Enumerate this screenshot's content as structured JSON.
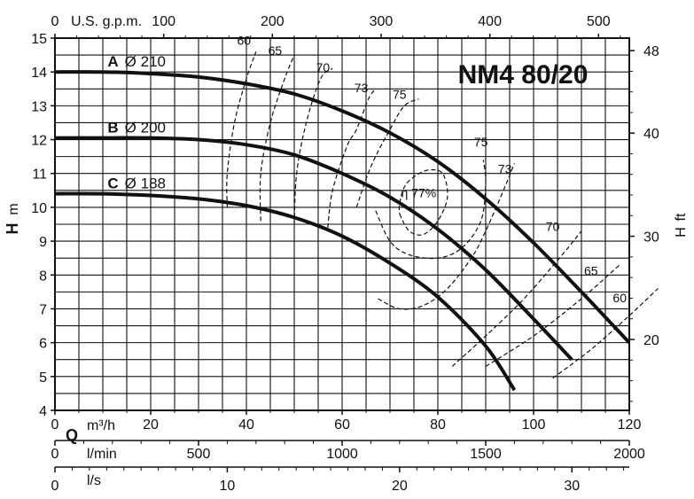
{
  "chart_data": {
    "type": "line",
    "title": "NM4 80/20",
    "ylabel": "H",
    "ylabel_unit": "m",
    "ylabel_right": "H",
    "ylabel_right_unit": "ft",
    "ylim": [
      4,
      15
    ],
    "yticks": [
      4,
      5,
      6,
      7,
      8,
      9,
      10,
      11,
      12,
      13,
      14,
      15
    ],
    "ylim_ft": [
      13.12,
      49.21
    ],
    "yticks_ft": [
      20,
      30,
      40,
      48
    ],
    "grid": true,
    "x_axes": [
      {
        "label": "Q",
        "unit": "m³/h",
        "range": [
          0,
          120
        ],
        "ticks": [
          0,
          20,
          40,
          60,
          80,
          100,
          120
        ]
      },
      {
        "unit": "l/min",
        "range": [
          0,
          2000
        ],
        "ticks": [
          0,
          500,
          1000,
          1500,
          2000
        ]
      },
      {
        "unit": "l/s",
        "range": [
          0,
          33.33
        ],
        "ticks": [
          0,
          10,
          20,
          30
        ]
      },
      {
        "unit": "U.S. g.p.m.",
        "range": [
          0,
          528.3
        ],
        "ticks": [
          0,
          100,
          200,
          300,
          400,
          500
        ]
      }
    ],
    "series": [
      {
        "name": "A",
        "diameter_label": "Ø 210",
        "x": [
          0,
          10,
          20,
          30,
          40,
          50,
          60,
          70,
          80,
          90,
          100,
          110,
          120
        ],
        "y": [
          14.0,
          14.0,
          13.95,
          13.85,
          13.65,
          13.35,
          12.85,
          12.2,
          11.35,
          10.25,
          8.95,
          7.5,
          6.0
        ]
      },
      {
        "name": "B",
        "diameter_label": "Ø 200",
        "x": [
          0,
          10,
          20,
          30,
          40,
          50,
          60,
          70,
          80,
          90,
          100,
          108
        ],
        "y": [
          12.05,
          12.05,
          12.05,
          12.0,
          11.85,
          11.55,
          11.0,
          10.3,
          9.35,
          8.15,
          6.7,
          5.5
        ]
      },
      {
        "name": "C",
        "diameter_label": "Ø 188",
        "x": [
          0,
          10,
          20,
          30,
          40,
          50,
          60,
          70,
          80,
          90,
          96
        ],
        "y": [
          10.4,
          10.4,
          10.35,
          10.25,
          10.05,
          9.7,
          9.15,
          8.35,
          7.35,
          5.9,
          4.6
        ]
      }
    ],
    "efficiency_contours": [
      {
        "label": "60",
        "unit": "",
        "points": [
          [
            36,
            10
          ],
          [
            36,
            11
          ],
          [
            37.5,
            12.5
          ],
          [
            40,
            13.8
          ],
          [
            42,
            14.6
          ]
        ],
        "label_at": [
          39.5,
          14.8
        ],
        "points2": [
          [
            104,
            4.95
          ],
          [
            112,
            5.8
          ],
          [
            120,
            6.8
          ],
          [
            126,
            7.6
          ]
        ],
        "label2_at": [
          118,
          7.2
        ]
      },
      {
        "label": "65",
        "unit": "",
        "points": [
          [
            43,
            9.6
          ],
          [
            43,
            11
          ],
          [
            45,
            12.5
          ],
          [
            48,
            13.8
          ],
          [
            50,
            14.5
          ]
        ],
        "label_at": [
          46,
          14.5
        ],
        "points2": [
          [
            90,
            5.3
          ],
          [
            100,
            6.2
          ],
          [
            110,
            7.3
          ],
          [
            118,
            8.3
          ]
        ],
        "label2_at": [
          112,
          8.0
        ]
      },
      {
        "label": "70",
        "unit": "",
        "points": [
          [
            50,
            9.5
          ],
          [
            50.5,
            11
          ],
          [
            52.5,
            12.5
          ],
          [
            55.5,
            13.8
          ],
          [
            58,
            14.1
          ]
        ],
        "label_at": [
          56,
          14.0
        ],
        "points2": [
          [
            83,
            5.3
          ],
          [
            90,
            6.2
          ],
          [
            98,
            7.3
          ],
          [
            106,
            8.6
          ],
          [
            110,
            9.3
          ]
        ],
        "label2_at": [
          104,
          9.3
        ]
      },
      {
        "label": "73",
        "unit": "",
        "points": [
          [
            57,
            9.4
          ],
          [
            58,
            10.5
          ],
          [
            61,
            11.8
          ],
          [
            63,
            12.3
          ],
          [
            65.5,
            13.2
          ],
          [
            67,
            13.5
          ]
        ],
        "label_at": [
          64,
          13.4
        ],
        "points2": [
          [
            67.5,
            7.3
          ],
          [
            72,
            7.0
          ],
          [
            77,
            7.1
          ],
          [
            82,
            7.6
          ],
          [
            87,
            8.5
          ],
          [
            90,
            9.3
          ],
          [
            94,
            10.6
          ],
          [
            96,
            11.3
          ]
        ],
        "label2_at": [
          94,
          11.0
        ]
      },
      {
        "label": "75",
        "unit": "",
        "points": [
          [
            63,
            10.0
          ],
          [
            66,
            11.2
          ],
          [
            70,
            12.3
          ],
          [
            73,
            13.0
          ],
          [
            76,
            13.2
          ]
        ],
        "label_at": [
          72,
          13.2
        ],
        "points2": [
          [
            67,
            9.9
          ],
          [
            70,
            9.0
          ],
          [
            74,
            8.6
          ],
          [
            80,
            8.5
          ],
          [
            85,
            8.8
          ],
          [
            89,
            9.6
          ],
          [
            90,
            10.7
          ],
          [
            89.5,
            11.4
          ]
        ],
        "label2_at": [
          89,
          11.8
        ]
      },
      {
        "label": "η 77%",
        "unit": "",
        "points": [
          [
            72,
            9.8
          ],
          [
            74,
            9.3
          ],
          [
            77,
            9.2
          ],
          [
            80,
            9.6
          ],
          [
            82,
            10.3
          ],
          [
            81,
            11.0
          ],
          [
            78,
            11.1
          ],
          [
            75,
            10.9
          ],
          [
            73,
            10.6
          ],
          [
            72,
            10.1
          ],
          [
            72,
            9.8
          ]
        ],
        "label_at": [
          76,
          10.3
        ]
      }
    ]
  }
}
